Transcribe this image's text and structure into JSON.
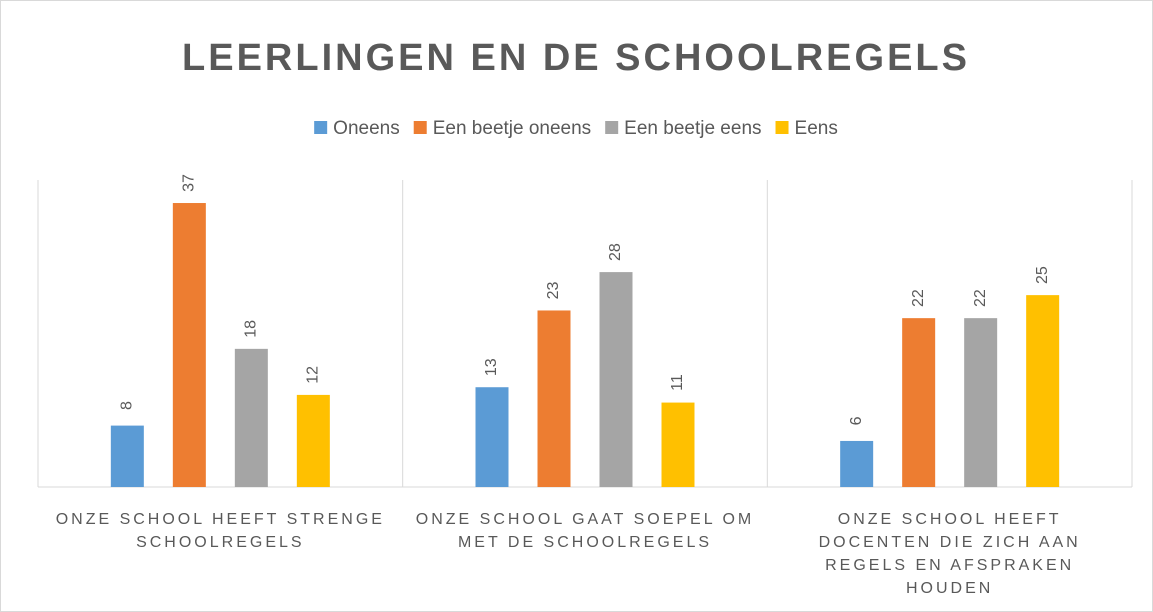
{
  "chart_data": {
    "type": "bar",
    "title": "LEERLINGEN EN DE SCHOOLREGELS",
    "categories": [
      "ONZE SCHOOL HEEFT STRENGE SCHOOLREGELS",
      "ONZE SCHOOL GAAT SOEPEL OM MET DE SCHOOLREGELS",
      "ONZE SCHOOL HEEFT DOCENTEN DIE ZICH AAN REGELS EN AFSPRAKEN HOUDEN"
    ],
    "series": [
      {
        "name": "Oneens",
        "color": "#5b9bd5",
        "values": [
          8,
          13,
          6
        ]
      },
      {
        "name": "Een beetje oneens",
        "color": "#ed7d31",
        "values": [
          37,
          23,
          22
        ]
      },
      {
        "name": "Een beetje eens",
        "color": "#a5a5a5",
        "values": [
          18,
          28,
          22
        ]
      },
      {
        "name": "Eens",
        "color": "#ffc000",
        "values": [
          12,
          11,
          25
        ]
      }
    ],
    "ylim": [
      0,
      40
    ],
    "legend": "top"
  }
}
